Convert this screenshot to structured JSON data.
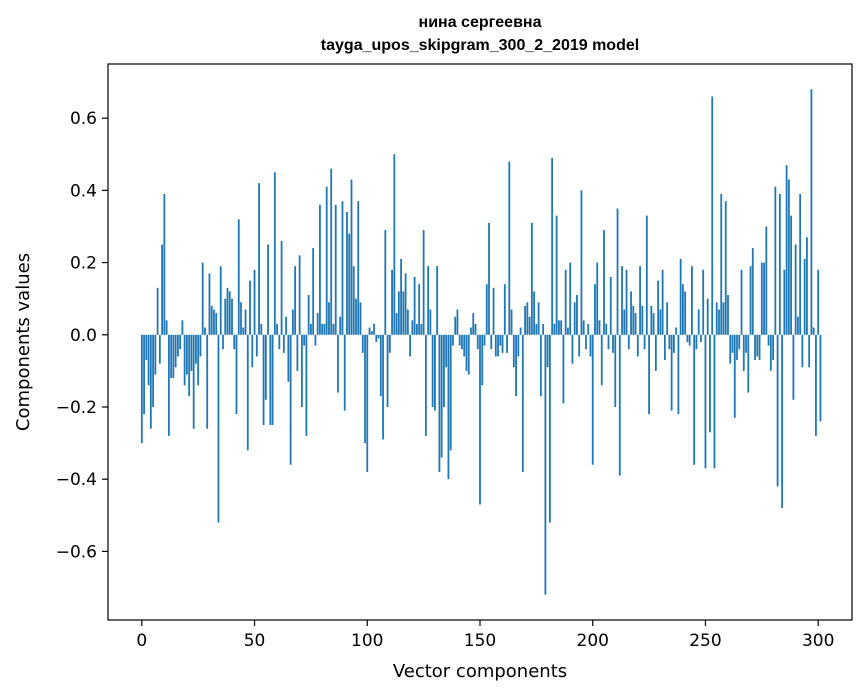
{
  "chart_data": {
    "type": "bar",
    "title_line1": "нина сергеевна",
    "title_line2": "tayga_upos_skipgram_300_2_2019 model",
    "xlabel": "Vector components",
    "ylabel": "Components values",
    "xlim": [
      -15,
      315
    ],
    "ylim": [
      -0.79,
      0.75
    ],
    "xticks": [
      0,
      50,
      100,
      150,
      200,
      250,
      300
    ],
    "xtick_labels": [
      "0",
      "50",
      "100",
      "150",
      "200",
      "250",
      "300"
    ],
    "yticks": [
      -0.6,
      -0.4,
      -0.2,
      0.0,
      0.2,
      0.4,
      0.6
    ],
    "ytick_labels": [
      "−0.6",
      "−0.4",
      "−0.2",
      "0.0",
      "0.2",
      "0.4",
      "0.6"
    ],
    "bar_color": "#1f77b4",
    "grid": false,
    "values": [
      -0.3,
      -0.22,
      -0.07,
      -0.14,
      -0.26,
      -0.2,
      -0.11,
      0.13,
      -0.08,
      0.25,
      0.39,
      0.04,
      -0.28,
      -0.12,
      -0.12,
      -0.09,
      -0.06,
      -0.04,
      0.04,
      -0.14,
      -0.11,
      -0.17,
      -0.1,
      -0.26,
      -0.08,
      -0.14,
      -0.06,
      0.2,
      0.02,
      -0.26,
      0.17,
      0.08,
      0.07,
      0.06,
      -0.52,
      0.19,
      -0.04,
      0.1,
      0.13,
      0.12,
      0.1,
      -0.04,
      -0.22,
      0.32,
      0.09,
      0.02,
      0.07,
      -0.32,
      0.15,
      -0.09,
      0.18,
      -0.06,
      0.42,
      0.03,
      -0.25,
      -0.18,
      0.25,
      -0.25,
      -0.25,
      0.45,
      0.03,
      -0.04,
      0.26,
      -0.05,
      0.05,
      -0.13,
      -0.36,
      0.07,
      0.19,
      -0.1,
      0.22,
      -0.2,
      -0.03,
      -0.28,
      0.11,
      0.03,
      0.24,
      -0.03,
      0.06,
      0.36,
      0.03,
      0.03,
      0.41,
      0.09,
      0.46,
      0.03,
      0.36,
      -0.16,
      0.05,
      0.37,
      -0.21,
      0.34,
      0.28,
      0.43,
      0.19,
      0.1,
      0.37,
      0.09,
      -0.05,
      -0.3,
      -0.38,
      0.02,
      0.01,
      0.03,
      -0.02,
      -0.01,
      -0.17,
      -0.29,
      0.29,
      -0.2,
      -0.05,
      0.18,
      0.5,
      0.06,
      0.12,
      0.21,
      0.12,
      0.17,
      0.07,
      -0.06,
      0.04,
      0.16,
      0.03,
      0.14,
      0.03,
      0.29,
      -0.28,
      0.19,
      0.07,
      -0.2,
      -0.21,
      0.19,
      -0.38,
      -0.34,
      -0.2,
      -0.09,
      -0.4,
      -0.32,
      -0.03,
      0.05,
      0.07,
      -0.03,
      -0.04,
      -0.06,
      -0.1,
      -0.11,
      0.02,
      0.06,
      0.03,
      -0.04,
      -0.47,
      -0.14,
      -0.03,
      0.14,
      0.31,
      -0.04,
      0.13,
      -0.06,
      -0.06,
      -0.03,
      -0.05,
      0.14,
      -0.05,
      0.48,
      0.07,
      -0.09,
      -0.17,
      -0.06,
      0.02,
      -0.38,
      0.08,
      0.09,
      0.05,
      0.31,
      0.12,
      0.03,
      0.09,
      -0.17,
      0.03,
      -0.72,
      -0.09,
      -0.52,
      0.49,
      0.03,
      0.33,
      0.04,
      0.04,
      -0.19,
      0.18,
      0.02,
      0.2,
      -0.08,
      0.09,
      0.11,
      -0.06,
      0.4,
      0.04,
      -0.04,
      0.03,
      -0.06,
      -0.36,
      0.14,
      0.2,
      0.04,
      -0.14,
      0.29,
      0.03,
      -0.04,
      0.16,
      -0.05,
      -0.2,
      0.35,
      -0.39,
      0.19,
      0.07,
      0.18,
      -0.04,
      0.12,
      0.08,
      0.06,
      -0.06,
      0.19,
      0.08,
      -0.04,
      0.33,
      -0.22,
      0.08,
      0.06,
      -0.1,
      0.15,
      0.07,
      0.18,
      -0.07,
      0.09,
      -0.04,
      -0.21,
      -0.05,
      0.02,
      -0.22,
      0.21,
      0.14,
      0.12,
      -0.02,
      -0.03,
      0.19,
      -0.36,
      -0.04,
      0.07,
      -0.02,
      0.18,
      -0.37,
      0.1,
      -0.27,
      0.66,
      -0.37,
      0.09,
      0.07,
      0.39,
      0.09,
      0.37,
      0.11,
      -0.08,
      -0.05,
      -0.23,
      -0.07,
      -0.04,
      0.18,
      -0.1,
      -0.05,
      -0.16,
      0.19,
      0.24,
      -0.07,
      -0.06,
      -0.07,
      0.2,
      0.2,
      0.3,
      -0.03,
      -0.1,
      -0.07,
      0.41,
      -0.42,
      0.39,
      -0.48,
      0.18,
      0.47,
      0.43,
      0.33,
      -0.18,
      0.25,
      0.05,
      0.39,
      -0.09,
      0.21,
      0.27,
      -0.09,
      0.68,
      0.02,
      -0.28,
      0.18,
      -0.24
    ]
  }
}
